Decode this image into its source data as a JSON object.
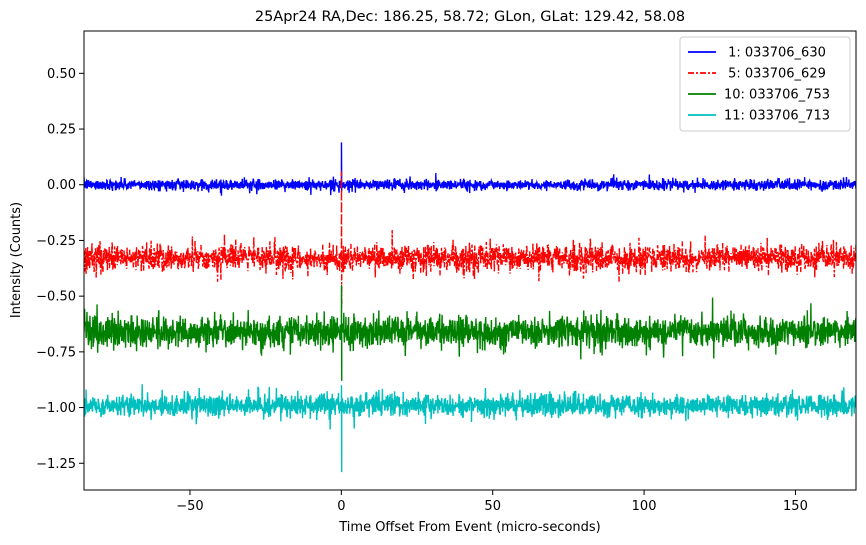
{
  "chart_data": {
    "type": "line",
    "title": "25Apr24 RA,Dec:  186.25,  58.72; GLon, GLat:  129.42,  58.08",
    "xlabel": "Time Offset From Event (micro-seconds)",
    "ylabel": "Intensity (Counts)",
    "xlim": [
      -85,
      170
    ],
    "ylim": [
      -1.37,
      0.69
    ],
    "x_ticks": [
      -50,
      0,
      50,
      100,
      150
    ],
    "x_tick_labels": [
      "−50",
      "0",
      "50",
      "100",
      "150"
    ],
    "y_ticks": [
      0.5,
      0.25,
      0.0,
      -0.25,
      -0.5,
      -0.75,
      -1.0,
      -1.25
    ],
    "y_tick_labels": [
      "0.50",
      "0.25",
      "0.00",
      "−0.25",
      "−0.50",
      "−0.75",
      "−1.00",
      "−1.25"
    ],
    "legend_position": "top-right",
    "series": [
      {
        "name": " 1: 033706_630",
        "color": "#0000ff",
        "style": "solid",
        "offset": 0.0,
        "noise": 0.012,
        "spike_peak": 0.19,
        "spike_min": -0.03
      },
      {
        "name": " 5: 033706_629",
        "color": "#ff0000",
        "style": "dashdot",
        "offset": -0.33,
        "noise": 0.03,
        "spike_peak": 0.06,
        "spike_min": -0.55
      },
      {
        "name": "10: 033706_753",
        "color": "#008000",
        "style": "solid",
        "offset": -0.66,
        "noise": 0.035,
        "spike_peak": -0.45,
        "spike_min": -0.88
      },
      {
        "name": "11: 033706_713",
        "color": "#00bfbf",
        "style": "solid",
        "offset": -0.99,
        "noise": 0.025,
        "spike_peak": -0.9,
        "spike_min": -1.29
      }
    ]
  }
}
